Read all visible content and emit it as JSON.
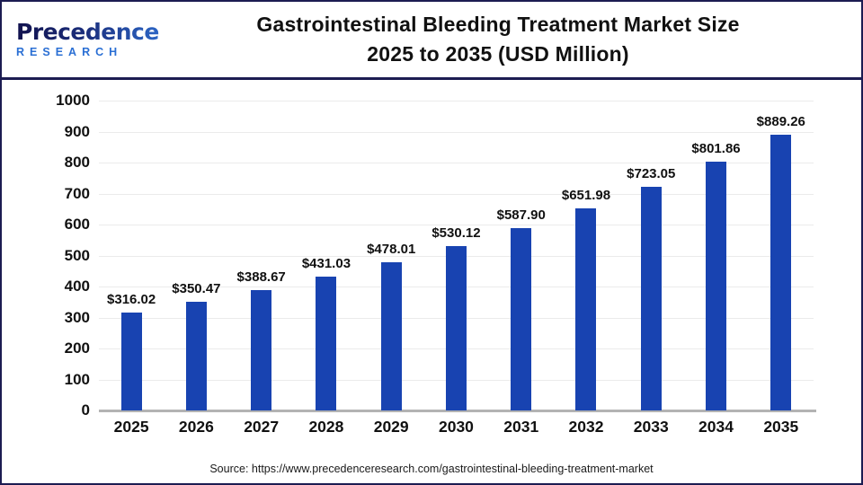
{
  "header": {
    "logo_brand": "Precedence",
    "logo_sub": "RESEARCH",
    "title_line1": "Gastrointestinal Bleeding Treatment Market Size",
    "title_line2": "2025 to 2035 (USD Million)"
  },
  "chart_data": {
    "type": "bar",
    "title": "Gastrointestinal Bleeding Treatment Market Size 2025 to 2035 (USD Million)",
    "categories": [
      "2025",
      "2026",
      "2027",
      "2028",
      "2029",
      "2030",
      "2031",
      "2032",
      "2033",
      "2034",
      "2035"
    ],
    "values": [
      316.02,
      350.47,
      388.67,
      431.03,
      478.01,
      530.12,
      587.9,
      651.98,
      723.05,
      801.86,
      889.26
    ],
    "value_labels": [
      "$316.02",
      "$350.47",
      "$388.67",
      "$431.03",
      "$478.01",
      "$530.12",
      "$587.90",
      "$651.98",
      "$723.05",
      "$801.86",
      "$889.26"
    ],
    "xlabel": "",
    "ylabel": "",
    "ylim": [
      0,
      1000
    ],
    "yticks": [
      0,
      100,
      200,
      300,
      400,
      500,
      600,
      700,
      800,
      900,
      1000
    ],
    "grid": true,
    "legend": false,
    "bar_color": "#1843b1",
    "gridline_color": "#ebebeb",
    "axis_line_color": "#b3b3b3"
  },
  "footer": {
    "source": "Source: https://www.precedenceresearch.com/gastrointestinal-bleeding-treatment-market"
  },
  "colors": {
    "border_navy": "#1c1c52",
    "logo_navy": "#12124e",
    "logo_blue": "#2a6fd4",
    "text": "#111111"
  }
}
